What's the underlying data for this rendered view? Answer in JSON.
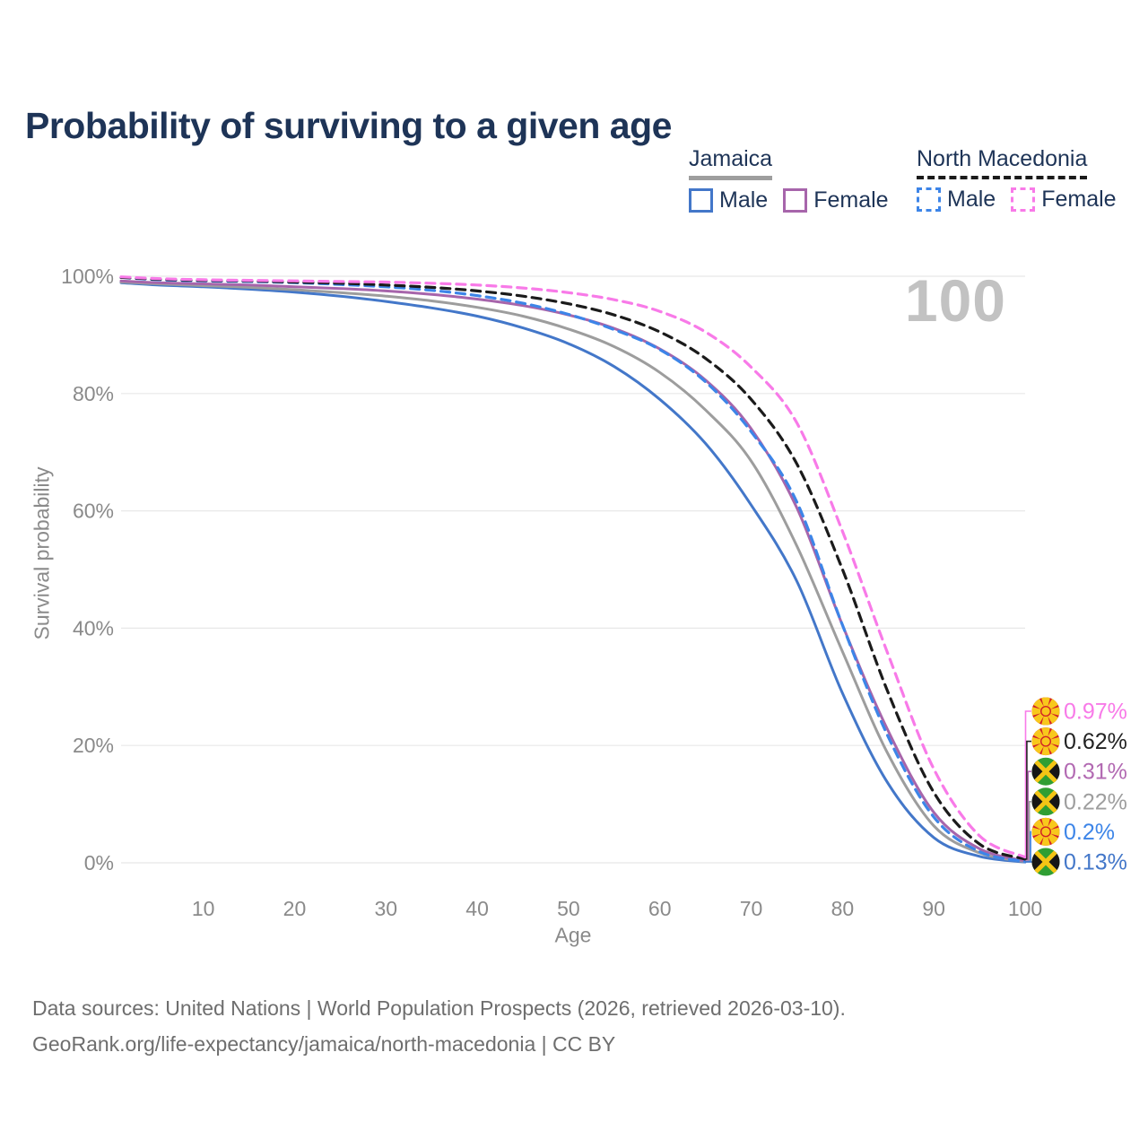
{
  "page": {
    "title": "Probability of surviving to a given age"
  },
  "legend": {
    "groups": [
      {
        "name": "Jamaica",
        "line_style": "solid",
        "underline_color": "#9e9e9e",
        "items": [
          {
            "label": "Male",
            "color": "#4377c9"
          },
          {
            "label": "Female",
            "color": "#a765ab"
          }
        ]
      },
      {
        "name": "North Macedonia",
        "line_style": "dashed",
        "underline_color": "#1b1b1b",
        "items": [
          {
            "label": "Male",
            "color": "#3d85e8"
          },
          {
            "label": "Female",
            "color": "#f87ae8"
          }
        ]
      }
    ]
  },
  "chart_data": {
    "type": "line",
    "title": "Probability of surviving to a given age",
    "xlabel": "Age",
    "ylabel": "Survival probability",
    "xlim": [
      1,
      100
    ],
    "ylim": [
      0,
      100
    ],
    "grid": "horizontal",
    "watermark": "100",
    "xticks": [
      10,
      20,
      30,
      40,
      50,
      60,
      70,
      80,
      90,
      100
    ],
    "yticks": [
      {
        "value": 0,
        "label": "0%"
      },
      {
        "value": 20,
        "label": "20%"
      },
      {
        "value": 40,
        "label": "40%"
      },
      {
        "value": 60,
        "label": "60%"
      },
      {
        "value": 80,
        "label": "80%"
      },
      {
        "value": 100,
        "label": "100%"
      }
    ],
    "x": [
      1,
      5,
      10,
      15,
      20,
      25,
      30,
      35,
      40,
      45,
      50,
      55,
      60,
      65,
      70,
      75,
      80,
      85,
      90,
      95,
      100
    ],
    "series": [
      {
        "id": "jamaica-male",
        "name": "Jamaica — Male",
        "color": "#4377c9",
        "dashed": false,
        "values": [
          98.9,
          98.5,
          98.2,
          97.8,
          97.3,
          96.6,
          95.7,
          94.6,
          93.2,
          91.2,
          88.5,
          84.6,
          79.0,
          71.5,
          61.0,
          48.0,
          28.9,
          13.5,
          4.3,
          1.1,
          0.13
        ]
      },
      {
        "id": "jamaica-all",
        "name": "Jamaica — Both sexes",
        "color": "#9d9d9d",
        "dashed": false,
        "values": [
          99.0,
          98.7,
          98.4,
          98.1,
          97.7,
          97.2,
          96.6,
          95.8,
          94.7,
          93.2,
          91.0,
          88.0,
          83.6,
          77.2,
          68.5,
          54.0,
          36.0,
          18.5,
          6.3,
          1.7,
          0.22
        ]
      },
      {
        "id": "jamaica-female",
        "name": "Jamaica — Female",
        "color": "#a765ab",
        "dashed": false,
        "values": [
          99.2,
          98.9,
          98.7,
          98.5,
          98.2,
          97.9,
          97.5,
          96.9,
          96.1,
          95.0,
          93.4,
          91.1,
          87.6,
          82.3,
          74.0,
          60.5,
          40.5,
          22.5,
          8.6,
          2.4,
          0.31
        ]
      },
      {
        "id": "north-macedonia-male",
        "name": "North Macedonia — Male",
        "color": "#3d85e8",
        "dashed": true,
        "values": [
          99.8,
          99.4,
          99.2,
          99.1,
          98.9,
          98.6,
          98.2,
          97.6,
          96.7,
          95.4,
          93.5,
          90.9,
          87.5,
          82.0,
          73.5,
          61.5,
          40.5,
          21.5,
          7.8,
          1.9,
          0.2
        ]
      },
      {
        "id": "north-macedonia-all",
        "name": "North Macedonia — Both sexes",
        "color": "#1b1b1b",
        "dashed": true,
        "values": [
          99.8,
          99.5,
          99.3,
          99.2,
          99.0,
          98.8,
          98.5,
          98.1,
          97.5,
          96.6,
          95.3,
          93.4,
          90.5,
          86.0,
          79.0,
          68.0,
          50.0,
          29.0,
          12.0,
          3.2,
          0.62
        ]
      },
      {
        "id": "north-macedonia-female",
        "name": "North Macedonia — Female",
        "color": "#f87ae8",
        "dashed": true,
        "values": [
          99.9,
          99.6,
          99.4,
          99.3,
          99.2,
          99.1,
          99.0,
          98.8,
          98.5,
          98.0,
          97.2,
          96.0,
          94.0,
          90.5,
          84.5,
          75.0,
          56.5,
          35.5,
          16.0,
          4.6,
          0.97
        ]
      }
    ],
    "end_labels": [
      {
        "value": "0.97%",
        "flag": "north-macedonia",
        "color": "#f87ae8",
        "series": "north-macedonia-female"
      },
      {
        "value": "0.62%",
        "flag": "north-macedonia",
        "color": "#222222",
        "series": "north-macedonia-all"
      },
      {
        "value": "0.31%",
        "flag": "jamaica",
        "color": "#b269b2",
        "series": "jamaica-female"
      },
      {
        "value": "0.22%",
        "flag": "jamaica",
        "color": "#9e9e9e",
        "series": "jamaica-all"
      },
      {
        "value": "0.2%",
        "flag": "north-macedonia",
        "color": "#3d85e8",
        "series": "north-macedonia-male"
      },
      {
        "value": "0.13%",
        "flag": "jamaica",
        "color": "#4377c9",
        "series": "jamaica-male"
      }
    ]
  },
  "footer": {
    "line1": "Data sources: United Nations | World Population Prospects (2026, retrieved 2026-03-10).",
    "line2": "GeoRank.org/life-expectancy/jamaica/north-macedonia | CC BY"
  }
}
